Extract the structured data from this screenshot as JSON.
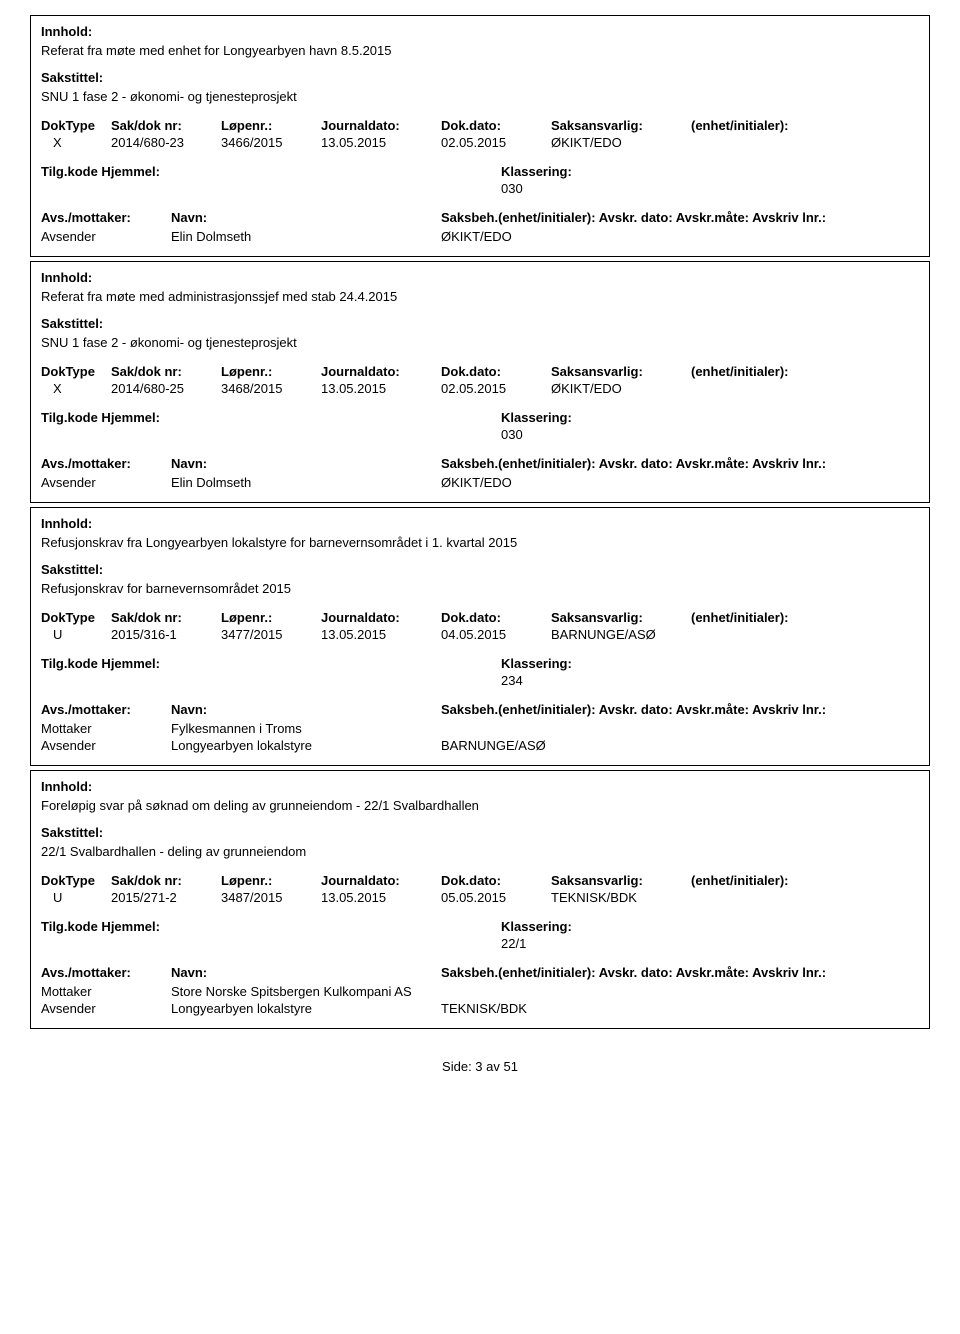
{
  "records": [
    {
      "innhold_label": "Innhold:",
      "innhold_text": "Referat fra møte med enhet for Longyearbyen havn 8.5.2015",
      "sakstittel_label": "Sakstittel:",
      "sakstittel_text": "SNU 1 fase 2 - økonomi- og tjenesteprosjekt",
      "headers": {
        "doktype": "DokType",
        "sakdok": "Sak/dok nr:",
        "lopenr": "Løpenr.:",
        "journaldato": "Journaldato:",
        "dokdato": "Dok.dato:",
        "saksansvarlig": "Saksansvarlig:",
        "enhet": "(enhet/initialer):"
      },
      "values": {
        "doktype": "X",
        "sakdok": "2014/680-23",
        "lopenr": "3466/2015",
        "journaldato": "13.05.2015",
        "dokdato": "02.05.2015",
        "saksansvarlig": "ØKIKT/EDO",
        "enhet": ""
      },
      "tilg_label": "Tilg.kode Hjemmel:",
      "klass_label": "Klassering:",
      "klass_value": "030",
      "avs_header": {
        "avsmottaker": "Avs./mottaker:",
        "navn": "Navn:",
        "saksbeh": "Saksbeh.(enhet/initialer): Avskr. dato:  Avskr.måte:  Avskriv lnr.:"
      },
      "avs_rows": [
        {
          "role": "Avsender",
          "name": "Elin Dolmseth",
          "saksbeh": "ØKIKT/EDO"
        }
      ]
    },
    {
      "innhold_label": "Innhold:",
      "innhold_text": "Referat fra møte med administrasjonssjef med stab 24.4.2015",
      "sakstittel_label": "Sakstittel:",
      "sakstittel_text": "SNU 1 fase 2 - økonomi- og tjenesteprosjekt",
      "headers": {
        "doktype": "DokType",
        "sakdok": "Sak/dok nr:",
        "lopenr": "Løpenr.:",
        "journaldato": "Journaldato:",
        "dokdato": "Dok.dato:",
        "saksansvarlig": "Saksansvarlig:",
        "enhet": "(enhet/initialer):"
      },
      "values": {
        "doktype": "X",
        "sakdok": "2014/680-25",
        "lopenr": "3468/2015",
        "journaldato": "13.05.2015",
        "dokdato": "02.05.2015",
        "saksansvarlig": "ØKIKT/EDO",
        "enhet": ""
      },
      "tilg_label": "Tilg.kode Hjemmel:",
      "klass_label": "Klassering:",
      "klass_value": "030",
      "avs_header": {
        "avsmottaker": "Avs./mottaker:",
        "navn": "Navn:",
        "saksbeh": "Saksbeh.(enhet/initialer): Avskr. dato:  Avskr.måte:  Avskriv lnr.:"
      },
      "avs_rows": [
        {
          "role": "Avsender",
          "name": "Elin Dolmseth",
          "saksbeh": "ØKIKT/EDO"
        }
      ]
    },
    {
      "innhold_label": "Innhold:",
      "innhold_text": "Refusjonskrav fra Longyearbyen lokalstyre for barnevernsområdet i 1. kvartal 2015",
      "sakstittel_label": "Sakstittel:",
      "sakstittel_text": "Refusjonskrav for barnevernsområdet 2015",
      "headers": {
        "doktype": "DokType",
        "sakdok": "Sak/dok nr:",
        "lopenr": "Løpenr.:",
        "journaldato": "Journaldato:",
        "dokdato": "Dok.dato:",
        "saksansvarlig": "Saksansvarlig:",
        "enhet": "(enhet/initialer):"
      },
      "values": {
        "doktype": "U",
        "sakdok": "2015/316-1",
        "lopenr": "3477/2015",
        "journaldato": "13.05.2015",
        "dokdato": "04.05.2015",
        "saksansvarlig": "BARNUNGE/ASØ",
        "enhet": ""
      },
      "tilg_label": "Tilg.kode Hjemmel:",
      "klass_label": "Klassering:",
      "klass_value": "234",
      "avs_header": {
        "avsmottaker": "Avs./mottaker:",
        "navn": "Navn:",
        "saksbeh": "Saksbeh.(enhet/initialer): Avskr. dato:  Avskr.måte:  Avskriv lnr.:"
      },
      "avs_rows": [
        {
          "role": "Mottaker",
          "name": "Fylkesmannen i Troms",
          "saksbeh": ""
        },
        {
          "role": "Avsender",
          "name": "Longyearbyen lokalstyre",
          "saksbeh": "BARNUNGE/ASØ"
        }
      ]
    },
    {
      "innhold_label": "Innhold:",
      "innhold_text": "Foreløpig svar på søknad om deling av grunneiendom - 22/1 Svalbardhallen",
      "sakstittel_label": "Sakstittel:",
      "sakstittel_text": "22/1 Svalbardhallen - deling av grunneiendom",
      "headers": {
        "doktype": "DokType",
        "sakdok": "Sak/dok nr:",
        "lopenr": "Løpenr.:",
        "journaldato": "Journaldato:",
        "dokdato": "Dok.dato:",
        "saksansvarlig": "Saksansvarlig:",
        "enhet": "(enhet/initialer):"
      },
      "values": {
        "doktype": "U",
        "sakdok": "2015/271-2",
        "lopenr": "3487/2015",
        "journaldato": "13.05.2015",
        "dokdato": "05.05.2015",
        "saksansvarlig": "TEKNISK/BDK",
        "enhet": ""
      },
      "tilg_label": "Tilg.kode Hjemmel:",
      "klass_label": "Klassering:",
      "klass_value": "22/1",
      "avs_header": {
        "avsmottaker": "Avs./mottaker:",
        "navn": "Navn:",
        "saksbeh": "Saksbeh.(enhet/initialer): Avskr. dato:  Avskr.måte:  Avskriv lnr.:"
      },
      "avs_rows": [
        {
          "role": "Mottaker",
          "name": "Store Norske Spitsbergen Kulkompani AS",
          "saksbeh": ""
        },
        {
          "role": "Avsender",
          "name": "Longyearbyen lokalstyre",
          "saksbeh": "TEKNISK/BDK"
        }
      ]
    }
  ],
  "footer": "Side: 3 av 51"
}
